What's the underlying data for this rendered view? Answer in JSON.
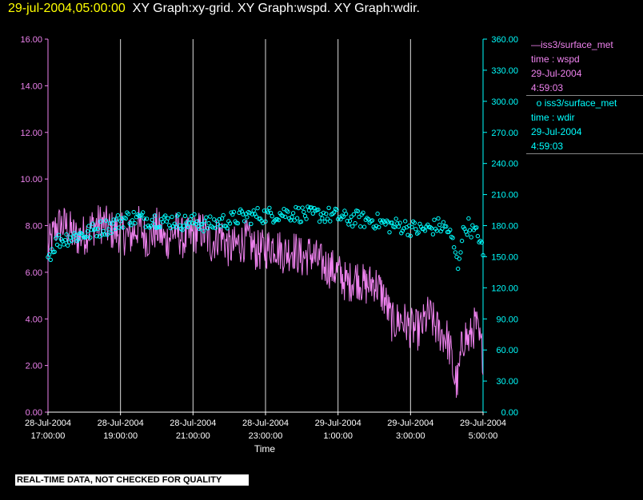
{
  "title": {
    "timestamp": "29-jul-2004,05:00:00",
    "graphs": "XY Graph:xy-grid.  XY Graph:wspd.  XY Graph:wdir."
  },
  "legend": {
    "wspd": {
      "name": "iss3/surface_met",
      "line2": "time : wspd",
      "line3": "29-Jul-2004",
      "line4": "4:59:03",
      "color": "#ee82ee"
    },
    "wdir": {
      "name": "iss3/surface_met",
      "line2": "time : wdir",
      "line3": "29-Jul-2004",
      "line4": "4:59:03",
      "color": "#00ffff"
    }
  },
  "disclaimer": "REAL-TIME DATA, NOT CHECKED FOR QUALITY",
  "chart_data": {
    "type": "line",
    "xlabel": "Time",
    "x_range_hours": [
      17.0,
      29.0
    ],
    "x_ticks": [
      {
        "t": 17,
        "line1": "28-Jul-2004",
        "line2": "17:00:00"
      },
      {
        "t": 19,
        "line1": "28-Jul-2004",
        "line2": "19:00:00"
      },
      {
        "t": 21,
        "line1": "28-Jul-2004",
        "line2": "21:00:00"
      },
      {
        "t": 23,
        "line1": "28-Jul-2004",
        "line2": "23:00:00"
      },
      {
        "t": 25,
        "line1": "29-Jul-2004",
        "line2": "1:00:00"
      },
      {
        "t": 27,
        "line1": "29-Jul-2004",
        "line2": "3:00:00"
      },
      {
        "t": 29,
        "line1": "29-Jul-2004",
        "line2": "5:00:00"
      }
    ],
    "y_left": {
      "range": [
        0,
        16
      ],
      "ticks": [
        "0.00",
        "2.00",
        "4.00",
        "6.00",
        "8.00",
        "10.00",
        "12.00",
        "14.00",
        "16.00"
      ],
      "color": "#ee82ee"
    },
    "y_right": {
      "range": [
        0,
        360
      ],
      "ticks": [
        "0.00",
        "30.00",
        "60.00",
        "90.00",
        "120.00",
        "150.00",
        "180.00",
        "210.00",
        "240.00",
        "270.00",
        "300.00",
        "330.00",
        "360.00"
      ],
      "color": "#00ffff"
    },
    "grid": "vertical",
    "series": [
      {
        "name": "iss3/surface_met time : wspd",
        "axis": "left",
        "style": "line",
        "color": "#ee82ee",
        "x": [
          17.0,
          17.25,
          17.5,
          17.75,
          18.0,
          18.25,
          18.5,
          18.75,
          19.0,
          19.25,
          19.5,
          19.75,
          20.0,
          20.25,
          20.5,
          20.75,
          21.0,
          21.25,
          21.5,
          21.75,
          22.0,
          22.25,
          22.5,
          22.75,
          23.0,
          23.25,
          23.5,
          23.75,
          24.0,
          24.25,
          24.5,
          24.75,
          25.0,
          25.25,
          25.5,
          25.75,
          26.0,
          26.25,
          26.5,
          26.75,
          27.0,
          27.25,
          27.5,
          27.75,
          28.0,
          28.1,
          28.2,
          28.3,
          28.4,
          28.5,
          28.6,
          28.7,
          28.8,
          28.9,
          29.0
        ],
        "y": [
          7.0,
          8.0,
          8.0,
          7.5,
          7.6,
          8.0,
          8.1,
          7.8,
          7.7,
          7.5,
          8.0,
          7.4,
          7.9,
          7.3,
          7.8,
          7.4,
          7.6,
          7.8,
          7.2,
          7.7,
          7.0,
          7.2,
          7.4,
          6.9,
          7.0,
          7.2,
          6.8,
          7.0,
          6.6,
          6.8,
          6.4,
          6.2,
          6.0,
          5.5,
          5.8,
          5.4,
          5.6,
          5.0,
          3.8,
          4.0,
          3.6,
          3.5,
          4.2,
          3.5,
          3.2,
          2.6,
          1.5,
          1.2,
          2.6,
          3.4,
          3.0,
          3.4,
          3.8,
          3.0,
          2.5
        ],
        "noise": 0.9
      },
      {
        "name": "iss3/surface_met time : wdir",
        "axis": "right",
        "style": "markers",
        "color": "#00ffff",
        "x": [
          17.0,
          17.25,
          17.5,
          17.75,
          18.0,
          18.25,
          18.5,
          18.75,
          19.0,
          19.25,
          19.5,
          19.75,
          20.0,
          20.25,
          20.5,
          20.75,
          21.0,
          21.25,
          21.5,
          21.75,
          22.0,
          22.25,
          22.5,
          22.75,
          23.0,
          23.25,
          23.5,
          23.75,
          24.0,
          24.25,
          24.5,
          24.75,
          25.0,
          25.25,
          25.5,
          25.75,
          26.0,
          26.25,
          26.5,
          26.75,
          27.0,
          27.25,
          27.5,
          27.75,
          28.0,
          28.1,
          28.2,
          28.3,
          28.4,
          28.5,
          28.6,
          28.7,
          28.8,
          28.9,
          29.0
        ],
        "y": [
          150,
          165,
          168,
          170,
          172,
          175,
          178,
          180,
          185,
          188,
          187,
          186,
          186,
          184,
          185,
          183,
          184,
          182,
          181,
          184,
          185,
          188,
          189,
          190,
          190,
          191,
          192,
          192,
          191,
          190,
          191,
          190,
          189,
          186,
          187,
          185,
          185,
          182,
          180,
          180,
          178,
          176,
          177,
          180,
          178,
          170,
          160,
          140,
          165,
          178,
          180,
          175,
          172,
          170,
          150
        ],
        "noise": 8
      }
    ]
  }
}
